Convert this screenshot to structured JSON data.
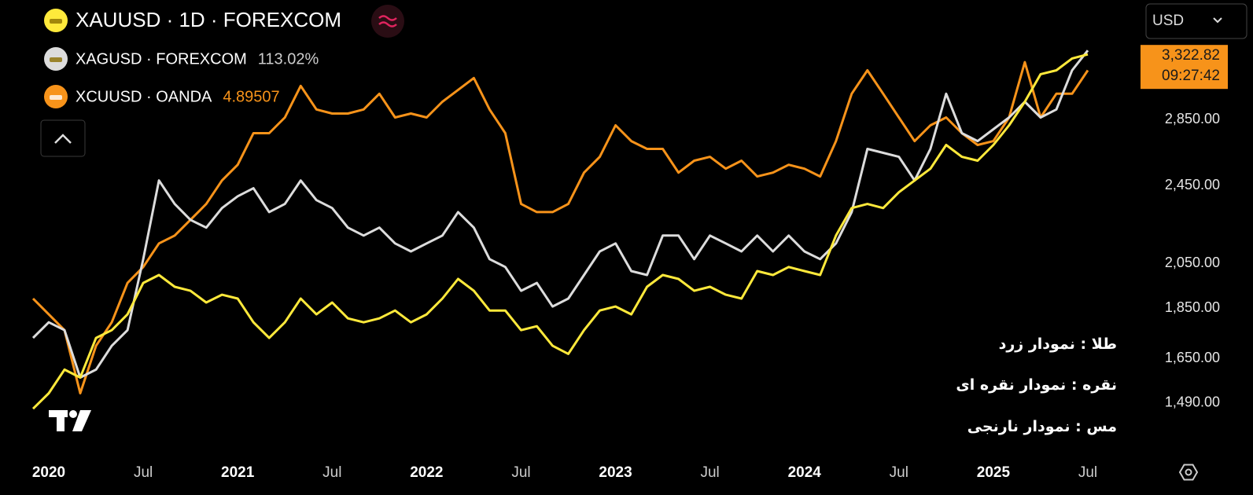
{
  "chart_data": {
    "type": "line",
    "currency": "USD",
    "log_scale": true,
    "grid": false,
    "categories": [
      null,
      "2020",
      null,
      null,
      null,
      null,
      null,
      "Jul",
      null,
      null,
      null,
      null,
      null,
      "2021",
      null,
      null,
      null,
      null,
      null,
      "Jul",
      null,
      null,
      null,
      null,
      null,
      "2022",
      null,
      null,
      null,
      null,
      null,
      "Jul",
      null,
      null,
      null,
      null,
      null,
      "2023",
      null,
      null,
      null,
      null,
      null,
      "Jul",
      null,
      null,
      null,
      null,
      null,
      "2024",
      null,
      null,
      null,
      null,
      null,
      "Jul",
      null,
      null,
      null,
      null,
      null,
      "2025",
      null,
      null,
      null,
      null,
      null,
      "Jul"
    ],
    "series": [
      {
        "name": "XAUUSD · 1D · FOREXCOM",
        "color": "#ffe93b",
        "values": [
          1470,
          1523,
          1608,
          1579,
          1729,
          1760,
          1825,
          1961,
          1997,
          1944,
          1926,
          1875,
          1909,
          1892,
          1792,
          1729,
          1792,
          1892,
          1825,
          1875,
          1808,
          1792,
          1808,
          1841,
          1792,
          1825,
          1892,
          1979,
          1926,
          1841,
          1841,
          1760,
          1776,
          1698,
          1667,
          1760,
          1841,
          1858,
          1825,
          1944,
          1997,
          1979,
          1926,
          1944,
          1909,
          1892,
          2015,
          1997,
          2034,
          2015,
          1997,
          2186,
          2328,
          2350,
          2328,
          2414,
          2480,
          2548,
          2690,
          2618,
          2595,
          2690,
          2814,
          2970,
          3164,
          3192,
          3280,
          3311
        ]
      },
      {
        "name": "XAGUSD · FOREXCOM",
        "color": "#dcdcdc",
        "legend_value": "113.02%",
        "values": [
          1729,
          1792,
          1760,
          1579,
          1608,
          1698,
          1760,
          2071,
          2480,
          2350,
          2266,
          2226,
          2328,
          2392,
          2436,
          2307,
          2350,
          2480,
          2371,
          2328,
          2226,
          2186,
          2226,
          2147,
          2108,
          2147,
          2186,
          2307,
          2226,
          2071,
          2034,
          1926,
          1961,
          1858,
          1892,
          1997,
          2108,
          2147,
          2015,
          1997,
          2186,
          2186,
          2071,
          2186,
          2147,
          2108,
          2186,
          2108,
          2186,
          2108,
          2071,
          2147,
          2307,
          2666,
          2642,
          2618,
          2480,
          2666,
          3025,
          2764,
          2714,
          2789,
          2865,
          2970,
          2865,
          2918,
          3192,
          3341
        ]
      },
      {
        "name": "XCUUSD · OANDA",
        "color": "#f7931a",
        "legend_value": "4.89507",
        "values": [
          1892,
          1825,
          1760,
          1523,
          1698,
          1792,
          1961,
          2034,
          2147,
          2186,
          2266,
          2350,
          2480,
          2571,
          2764,
          2764,
          2865,
          3080,
          2918,
          2891,
          2891,
          2918,
          3025,
          2865,
          2891,
          2865,
          2970,
          3052,
          3136,
          2918,
          2764,
          2350,
          2307,
          2307,
          2350,
          2525,
          2618,
          2814,
          2714,
          2666,
          2666,
          2525,
          2595,
          2618,
          2548,
          2595,
          2503,
          2525,
          2571,
          2548,
          2503,
          2714,
          3025,
          3192,
          3025,
          2865,
          2714,
          2814,
          2865,
          2764,
          2690,
          2714,
          2865,
          3252,
          2865,
          3025,
          3025,
          3192
        ]
      }
    ],
    "ylim": [
      1320,
      3750
    ],
    "yticks": [
      {
        "value": 1490,
        "label": "1,490.00"
      },
      {
        "value": 1650,
        "label": "1,650.00"
      },
      {
        "value": 1850,
        "label": "1,850.00"
      },
      {
        "value": 2050,
        "label": "2,050.00"
      },
      {
        "value": 2450,
        "label": "2,450.00"
      },
      {
        "value": 2850,
        "label": "2,850.00"
      }
    ],
    "last_price": {
      "value": 3322.82,
      "label": "3,322.82",
      "time": "09:27:42"
    },
    "annotations": [
      "طلا : نمودار زرد",
      "نقره : نمودار نقره ای",
      "مس : نمودار نارنجی"
    ]
  }
}
